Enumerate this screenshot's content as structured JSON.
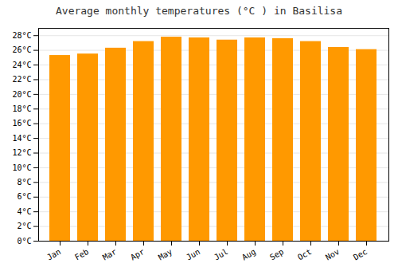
{
  "chart_data": {
    "type": "bar",
    "title": "Average monthly temperatures (°C ) in Basilisa",
    "categories": [
      "Jan",
      "Feb",
      "Mar",
      "Apr",
      "May",
      "Jun",
      "Jul",
      "Aug",
      "Sep",
      "Oct",
      "Nov",
      "Dec"
    ],
    "values": [
      25.3,
      25.5,
      26.3,
      27.2,
      27.8,
      27.7,
      27.4,
      27.7,
      27.6,
      27.2,
      26.4,
      26.1
    ],
    "color": "#FF9900",
    "ylim": [
      0,
      29
    ],
    "yticks": [
      {
        "value": 0,
        "label": "0°C"
      },
      {
        "value": 2,
        "label": "2°C"
      },
      {
        "value": 4,
        "label": "4°C"
      },
      {
        "value": 6,
        "label": "6°C"
      },
      {
        "value": 8,
        "label": "8°C"
      },
      {
        "value": 10,
        "label": "10°C"
      },
      {
        "value": 12,
        "label": "12°C"
      },
      {
        "value": 14,
        "label": "14°C"
      },
      {
        "value": 16,
        "label": "16°C"
      },
      {
        "value": 18,
        "label": "18°C"
      },
      {
        "value": 20,
        "label": "20°C"
      },
      {
        "value": 22,
        "label": "22°C"
      },
      {
        "value": 24,
        "label": "24°C"
      },
      {
        "value": 26,
        "label": "26°C"
      },
      {
        "value": 28,
        "label": "28°C"
      }
    ],
    "grid": true
  }
}
